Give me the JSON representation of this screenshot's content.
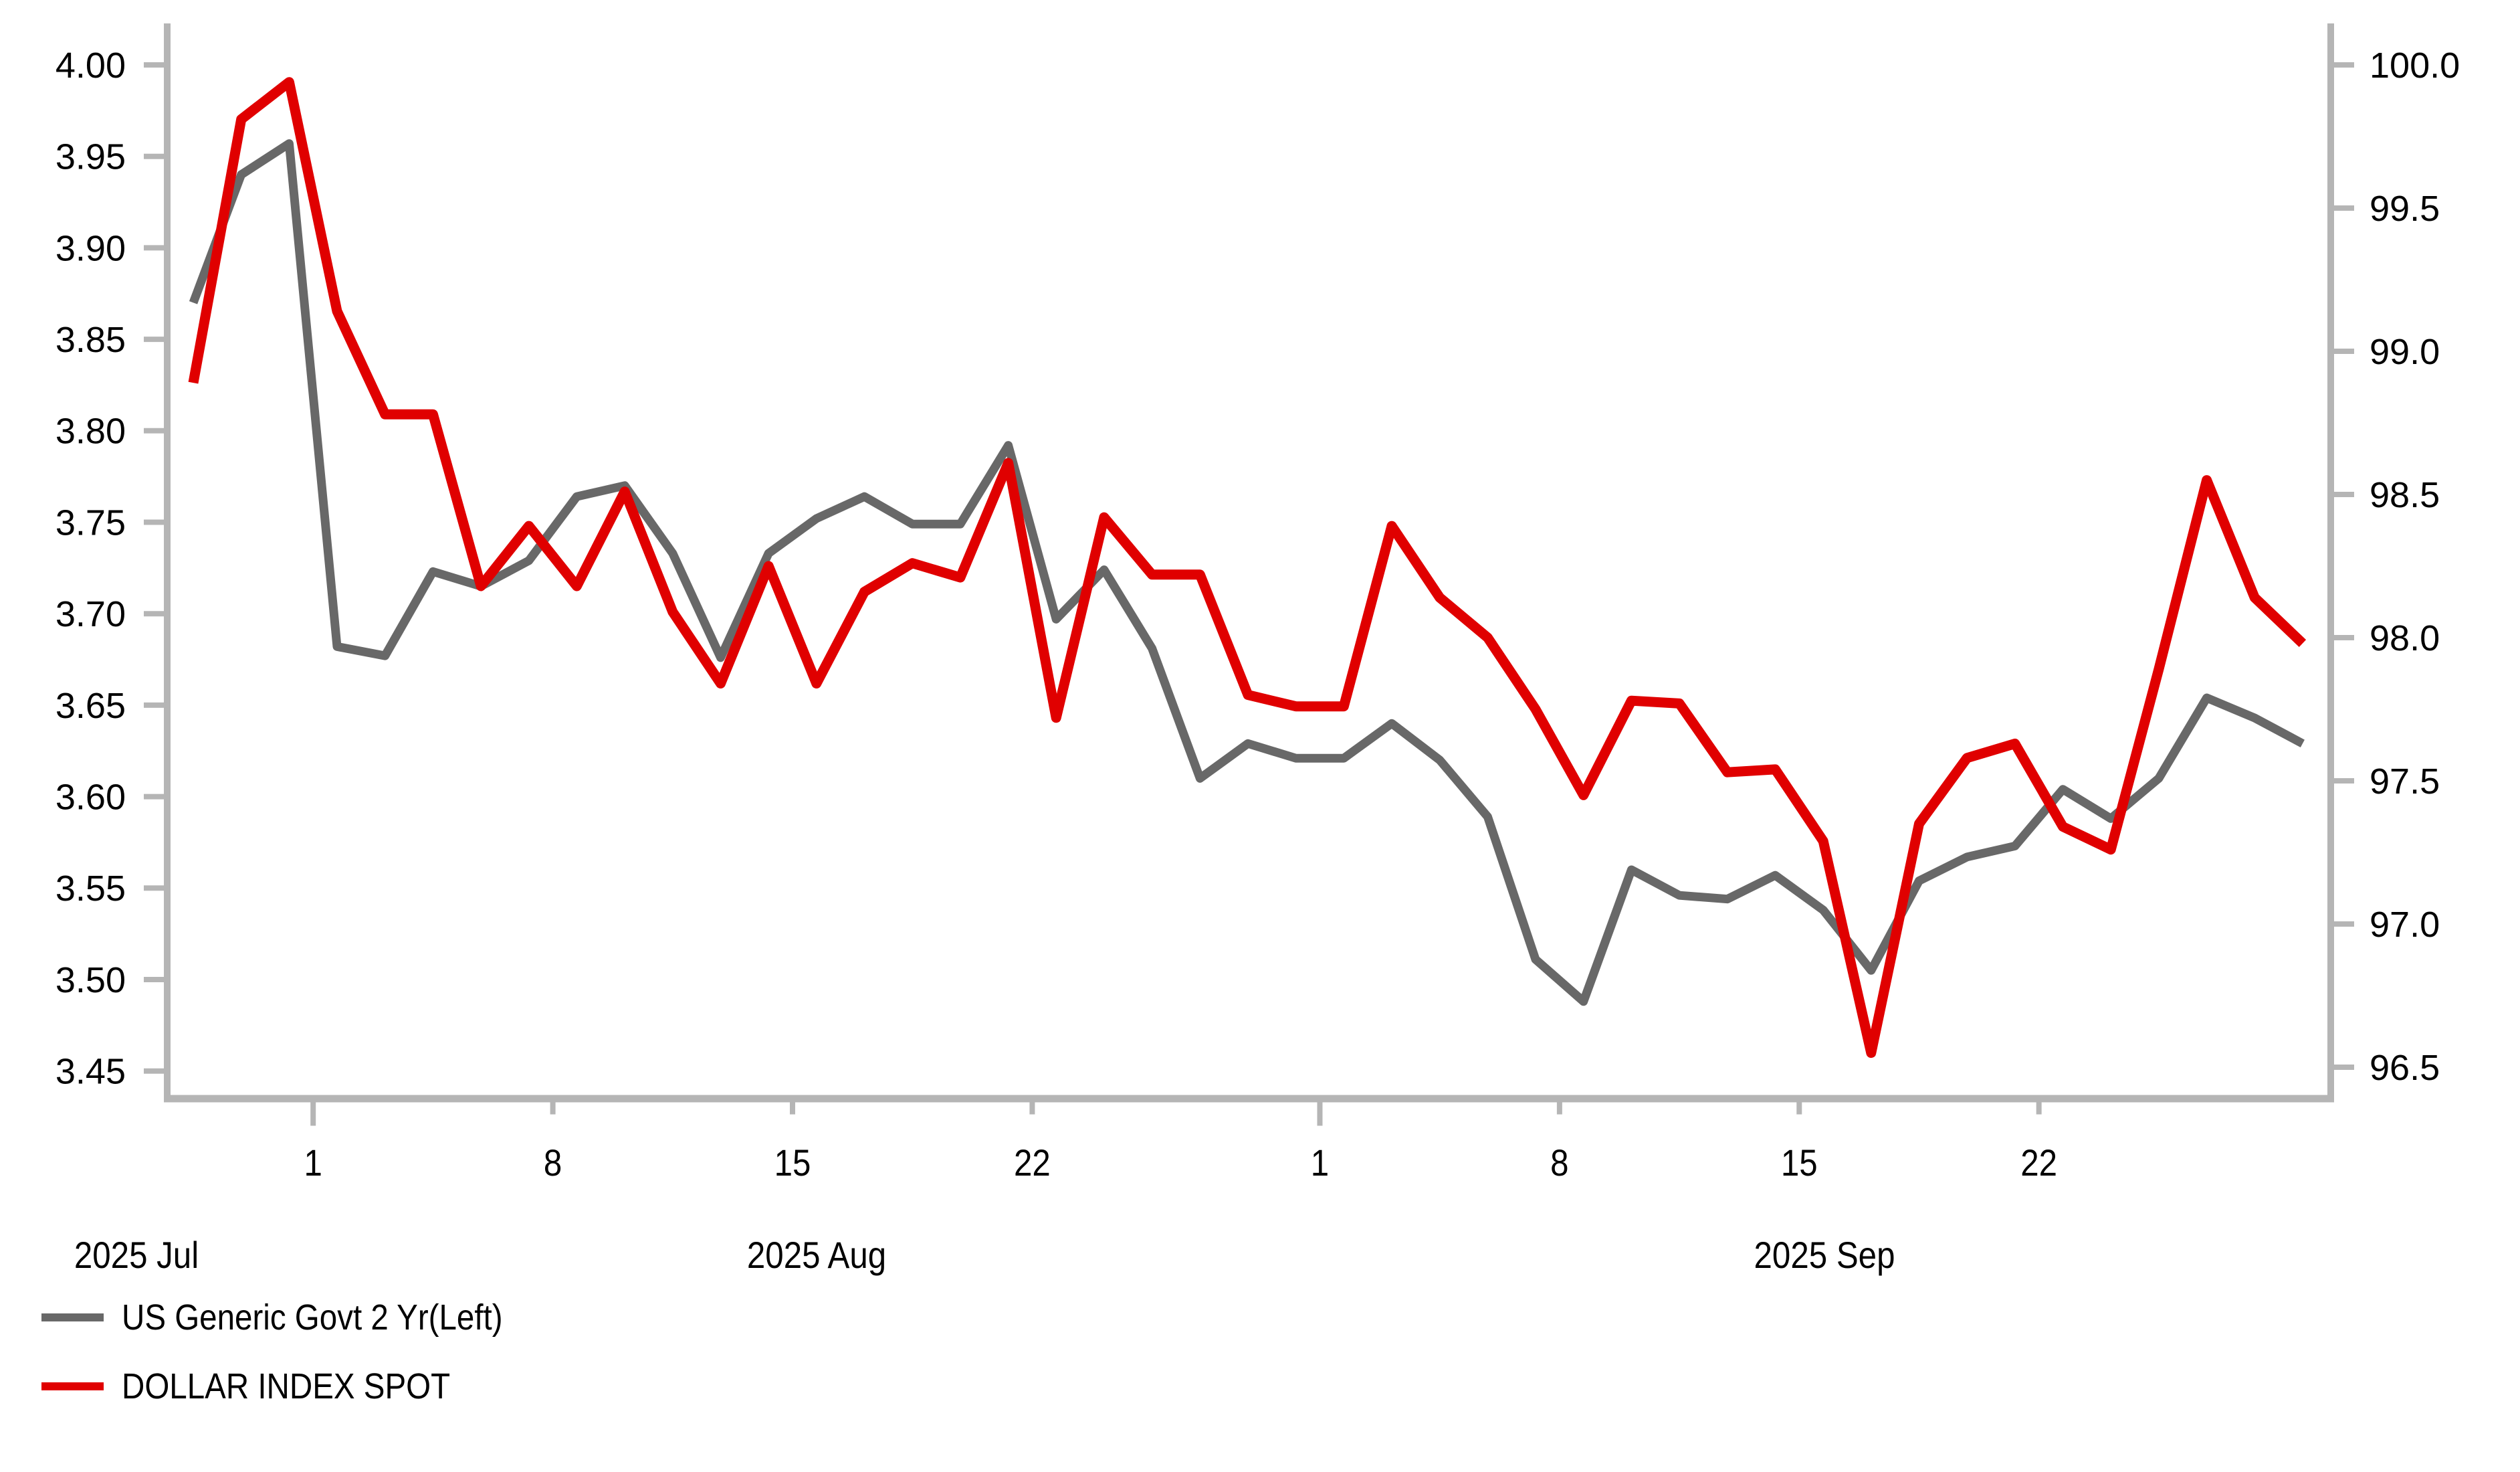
{
  "chart_data": {
    "type": "line",
    "title": "",
    "x_dates": [
      "2025-07-29",
      "2025-07-30",
      "2025-07-31",
      "2025-08-01",
      "2025-08-04",
      "2025-08-05",
      "2025-08-06",
      "2025-08-07",
      "2025-08-08",
      "2025-08-11",
      "2025-08-12",
      "2025-08-13",
      "2025-08-14",
      "2025-08-15",
      "2025-08-18",
      "2025-08-19",
      "2025-08-20",
      "2025-08-21",
      "2025-08-22",
      "2025-08-25",
      "2025-08-26",
      "2025-08-27",
      "2025-08-28",
      "2025-08-29",
      "2025-09-01",
      "2025-09-02",
      "2025-09-03",
      "2025-09-04",
      "2025-09-05",
      "2025-09-08",
      "2025-09-09",
      "2025-09-10",
      "2025-09-11",
      "2025-09-12",
      "2025-09-15",
      "2025-09-16",
      "2025-09-17",
      "2025-09-18",
      "2025-09-19",
      "2025-09-22",
      "2025-09-23",
      "2025-09-24",
      "2025-09-25",
      "2025-09-26",
      "2025-09-29"
    ],
    "series": [
      {
        "name": "US Generic Govt 2 Yr(Left)",
        "axis": "left",
        "color": "#686868",
        "stroke_width": 13,
        "values": [
          3.87,
          3.94,
          3.957,
          3.682,
          3.677,
          3.723,
          3.715,
          3.729,
          3.764,
          3.77,
          3.733,
          3.676,
          3.733,
          3.752,
          3.764,
          3.749,
          3.749,
          3.792,
          3.697,
          3.724,
          3.681,
          3.61,
          3.629,
          3.621,
          3.621,
          3.64,
          3.62,
          3.589,
          3.511,
          3.488,
          3.56,
          3.546,
          3.544,
          3.557,
          3.538,
          3.505,
          3.554,
          3.567,
          3.573,
          3.604,
          3.588,
          3.61,
          3.654,
          3.643,
          3.629
        ]
      },
      {
        "name": "DOLLAR INDEX SPOT",
        "axis": "right",
        "color": "#e00000",
        "stroke_width": 15,
        "values": [
          98.89,
          99.81,
          99.94,
          99.14,
          98.78,
          98.78,
          98.18,
          98.39,
          98.18,
          98.51,
          98.09,
          97.84,
          98.25,
          97.84,
          98.16,
          98.26,
          98.21,
          98.61,
          97.72,
          98.42,
          98.22,
          98.22,
          97.8,
          97.76,
          97.76,
          98.39,
          98.14,
          98.0,
          97.75,
          97.45,
          97.78,
          97.77,
          97.53,
          97.54,
          97.29,
          96.55,
          97.35,
          97.58,
          97.63,
          97.34,
          97.26,
          97.89,
          98.55,
          98.14,
          97.98
        ]
      }
    ],
    "left_axis": {
      "tick_labels": [
        "4.00",
        "3.95",
        "3.90",
        "3.85",
        "3.80",
        "3.75",
        "3.70",
        "3.65",
        "3.60",
        "3.55",
        "3.50",
        "3.45"
      ],
      "tick_values": [
        4.0,
        3.95,
        3.9,
        3.85,
        3.8,
        3.75,
        3.7,
        3.65,
        3.6,
        3.55,
        3.5,
        3.45
      ]
    },
    "right_axis": {
      "tick_labels": [
        "100.0",
        "99.5",
        "99.0",
        "98.5",
        "98.0",
        "97.5",
        "97.0",
        "96.5"
      ],
      "tick_values": [
        100.0,
        99.5,
        99.0,
        98.5,
        98.0,
        97.5,
        97.0,
        96.5
      ]
    },
    "x_ticks": [
      {
        "label": "1",
        "at_index": 3,
        "major": true
      },
      {
        "label": "8",
        "at_index": 8,
        "major": false
      },
      {
        "label": "15",
        "at_index": 13,
        "major": false
      },
      {
        "label": "22",
        "at_index": 18,
        "major": false
      },
      {
        "label": "1",
        "at_index": 24,
        "major": true
      },
      {
        "label": "8",
        "at_index": 29,
        "major": false
      },
      {
        "label": "15",
        "at_index": 34,
        "major": false
      },
      {
        "label": "22",
        "at_index": 39,
        "major": false
      }
    ],
    "month_labels": [
      "2025 Jul",
      "2025 Aug",
      "2025 Sep"
    ],
    "legend_position": "bottom-left",
    "grid": "off",
    "background": "#ffffff",
    "axis_color": "#b5b5b5",
    "text_color": "#000000"
  },
  "legend": {
    "items": [
      {
        "label": "US Generic Govt 2 Yr(Left)",
        "color": "#686868"
      },
      {
        "label": "DOLLAR INDEX SPOT",
        "color": "#e00000"
      }
    ]
  }
}
